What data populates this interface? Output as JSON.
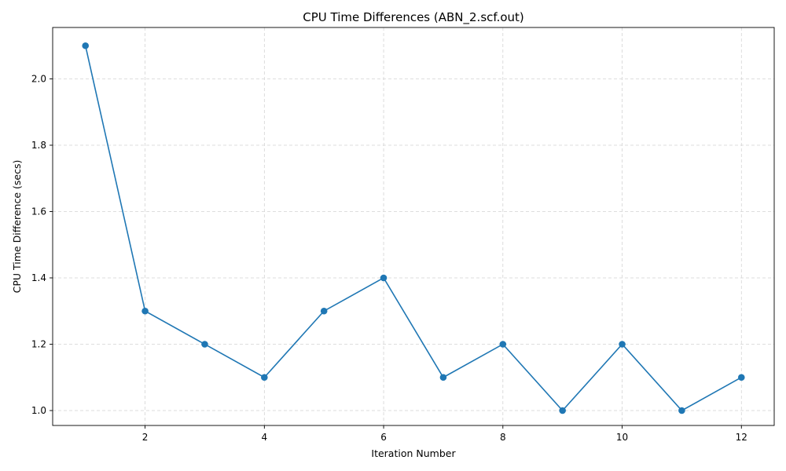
{
  "chart_data": {
    "type": "line",
    "title": "CPU Time Differences (ABN_2.scf.out)",
    "xlabel": "Iteration Number",
    "ylabel": "CPU Time Difference (secs)",
    "x": [
      1,
      2,
      3,
      4,
      5,
      6,
      7,
      8,
      9,
      10,
      11,
      12
    ],
    "series": [
      {
        "values": [
          2.1,
          1.3,
          1.2,
          1.1,
          1.3,
          1.4,
          1.1,
          1.2,
          1.0,
          1.2,
          1.0,
          1.1
        ]
      }
    ],
    "xlim": [
      0.45,
      12.55
    ],
    "ylim": [
      0.955,
      2.155
    ],
    "xticks": [
      2,
      4,
      6,
      8,
      10,
      12
    ],
    "yticks": [
      1.0,
      1.2,
      1.4,
      1.6,
      1.8,
      2.0
    ],
    "xtick_labels": [
      "2",
      "4",
      "6",
      "8",
      "10",
      "12"
    ],
    "ytick_labels": [
      "1.0",
      "1.2",
      "1.4",
      "1.6",
      "1.8",
      "2.0"
    ],
    "grid": true,
    "marker": "circle",
    "line_color": "#1f77b4"
  }
}
